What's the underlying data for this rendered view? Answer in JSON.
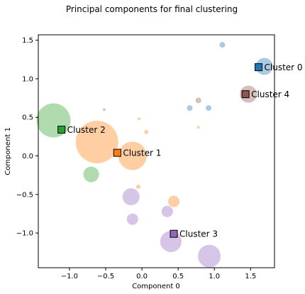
{
  "chart_data": {
    "type": "scatter",
    "title": "Principal components for final clustering",
    "xlabel": "Component 0",
    "ylabel": "Component 1",
    "xlim": [
      -1.43,
      1.83
    ],
    "ylim": [
      -1.45,
      1.57
    ],
    "xticks": [
      -1.0,
      -0.5,
      0.0,
      0.5,
      1.0,
      1.5
    ],
    "xtick_labels": [
      "−1.0",
      "−0.5",
      "0.0",
      "0.5",
      "1.0",
      "1.5"
    ],
    "yticks": [
      -1.0,
      -0.5,
      0.0,
      0.5,
      1.0,
      1.5
    ],
    "ytick_labels": [
      "−1.0",
      "−0.5",
      "0.0",
      "0.5",
      "1.0",
      "1.5"
    ],
    "grid": false,
    "legend": "none",
    "clusters": [
      {
        "label": "Cluster 0",
        "color": "#1f77b4",
        "center": [
          1.61,
          1.15
        ],
        "points": [
          {
            "x": 1.69,
            "y": 1.16,
            "size": 12
          },
          {
            "x": 1.11,
            "y": 1.44,
            "size": 4
          },
          {
            "x": 0.92,
            "y": 0.62,
            "size": 4
          },
          {
            "x": 0.66,
            "y": 0.62,
            "size": 4
          }
        ]
      },
      {
        "label": "Cluster 1",
        "color": "#ff7f0e",
        "center": [
          -0.34,
          0.04
        ],
        "points": [
          {
            "x": -0.62,
            "y": 0.18,
            "size": 30
          },
          {
            "x": -0.13,
            "y": 0.0,
            "size": 20
          },
          {
            "x": 0.06,
            "y": 0.31,
            "size": 3
          },
          {
            "x": -0.04,
            "y": 0.48,
            "size": 2
          },
          {
            "x": 0.78,
            "y": 0.37,
            "size": 2
          },
          {
            "x": -0.05,
            "y": -0.4,
            "size": 3
          },
          {
            "x": 0.44,
            "y": -0.59,
            "size": 8
          }
        ]
      },
      {
        "label": "Cluster 2",
        "color": "#2ca02c",
        "center": [
          -1.11,
          0.34
        ],
        "points": [
          {
            "x": -1.22,
            "y": 0.46,
            "size": 24
          },
          {
            "x": -0.7,
            "y": -0.24,
            "size": 11
          },
          {
            "x": -0.52,
            "y": 0.6,
            "size": 2
          }
        ]
      },
      {
        "label": "Cluster 3",
        "color": "#9467bd",
        "center": [
          0.44,
          -1.01
        ],
        "points": [
          {
            "x": 0.4,
            "y": -1.11,
            "size": 15
          },
          {
            "x": 0.93,
            "y": -1.3,
            "size": 16
          },
          {
            "x": -0.15,
            "y": -0.53,
            "size": 12
          },
          {
            "x": 0.35,
            "y": -0.72,
            "size": 8
          },
          {
            "x": -0.13,
            "y": -0.82,
            "size": 8
          }
        ]
      },
      {
        "label": "Cluster 4",
        "color": "#8c564b",
        "center": [
          1.43,
          0.8
        ],
        "points": [
          {
            "x": 1.47,
            "y": 0.8,
            "size": 12
          },
          {
            "x": 0.78,
            "y": 0.72,
            "size": 4
          }
        ]
      }
    ]
  }
}
